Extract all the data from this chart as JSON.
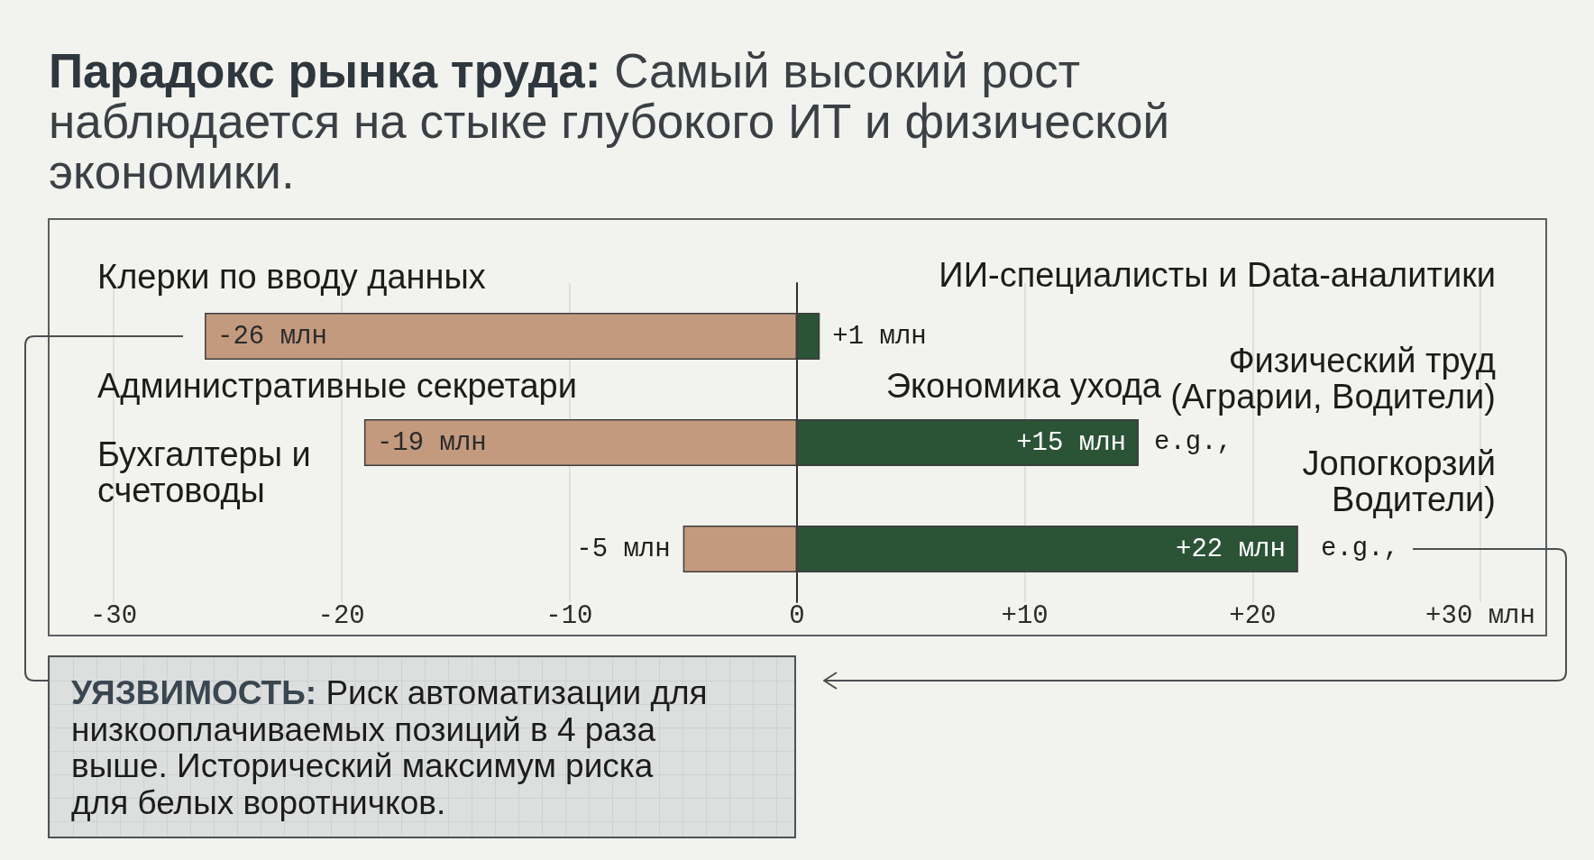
{
  "chart_data": {
    "type": "bar",
    "orientation": "horizontal",
    "stacked": true,
    "title": "Парадокс рынка труда: Самый высокий рост наблюдается на стыке глубокого ИТ и физической экономики.",
    "categories": [
      null,
      null,
      null
    ],
    "series": [
      {
        "color": "#c49a7f",
        "values": [
          -26,
          -19,
          -5
        ],
        "value_labels": [
          "-26 млн",
          "-19 млн",
          "-5 млн"
        ]
      },
      {
        "color": "#2b5336",
        "values": [
          1,
          15,
          22
        ],
        "value_labels": [
          "+1 млн",
          "+15 млн",
          "+22 млн"
        ]
      }
    ],
    "xlim": [
      -30,
      30
    ],
    "xticks": [
      -30,
      -20,
      -10,
      0,
      {
        "value": 10,
        "label": "+10"
      },
      {
        "value": 20,
        "label": "+20"
      },
      {
        "value": 30,
        "label": "+30 млн"
      }
    ],
    "grid": "x",
    "annotations": [
      "Клерки по вводу данных",
      "ИИ-специалисты и Data-аналитики",
      "Административные секретари",
      "Бухгалтеры и счетоводы",
      "Экономика ухода",
      "Физический труд (Аграрии, Водители)",
      "e.g.,",
      "Jопогкорзий Водители)",
      "e.g.,",
      "УЯЗВИМОСТЬ: Риск автоматизации для низкооплачиваемых позиций в 4 раза выше. Исторический максимум риска для белых воротничков."
    ]
  }
}
